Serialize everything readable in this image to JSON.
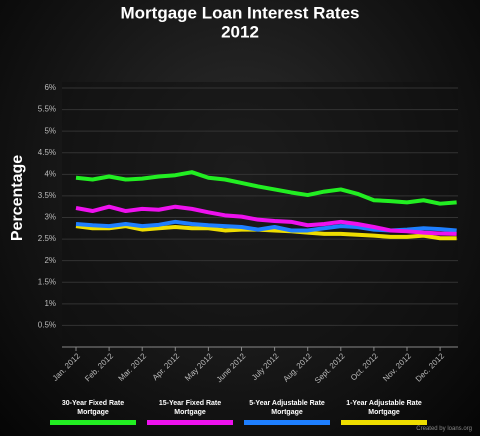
{
  "chart_data": {
    "type": "line",
    "title": "Mortgage Loan Interest Rates",
    "subtitle": "2012",
    "y_label": "Percentage",
    "source": "Created by loans.org",
    "categories": [
      "Jan. 2012",
      null,
      "Feb. 2012",
      null,
      "Mar. 2012",
      null,
      "Apr. 2012",
      null,
      "May 2012",
      null,
      "June 2012",
      null,
      "July 2012",
      null,
      "Aug. 2012",
      null,
      "Sept. 2012",
      null,
      "Oct. 2012",
      null,
      "Nov. 2012",
      null,
      "Dec. 2012",
      null
    ],
    "series": [
      {
        "name": "30-Year Fixed Rate Mortgage",
        "color": "#22ee22",
        "values": [
          3.92,
          3.88,
          3.95,
          3.88,
          3.9,
          3.95,
          3.98,
          4.05,
          3.92,
          3.88,
          3.8,
          3.72,
          3.65,
          3.58,
          3.52,
          3.6,
          3.65,
          3.55,
          3.4,
          3.38,
          3.35,
          3.4,
          3.32,
          3.35
        ]
      },
      {
        "name": "15-Year Fixed Rate Mortgage",
        "color": "#ee11ee",
        "values": [
          3.22,
          3.15,
          3.25,
          3.15,
          3.2,
          3.18,
          3.25,
          3.2,
          3.12,
          3.05,
          3.02,
          2.95,
          2.92,
          2.9,
          2.82,
          2.85,
          2.9,
          2.85,
          2.78,
          2.7,
          2.68,
          2.65,
          2.63,
          2.62
        ]
      },
      {
        "name": "5-Year Adjustable Rate Mortgage",
        "color": "#1e7fff",
        "values": [
          2.85,
          2.82,
          2.8,
          2.85,
          2.8,
          2.83,
          2.9,
          2.85,
          2.82,
          2.8,
          2.78,
          2.72,
          2.78,
          2.7,
          2.7,
          2.75,
          2.8,
          2.78,
          2.72,
          2.7,
          2.72,
          2.75,
          2.73,
          2.7
        ]
      },
      {
        "name": "1-Year Adjustable Rate Mortgage",
        "color": "#eedd00",
        "values": [
          2.8,
          2.75,
          2.75,
          2.8,
          2.72,
          2.75,
          2.78,
          2.75,
          2.75,
          2.7,
          2.72,
          2.72,
          2.7,
          2.68,
          2.65,
          2.62,
          2.62,
          2.6,
          2.58,
          2.55,
          2.55,
          2.58,
          2.52,
          2.52
        ]
      }
    ],
    "ylim": [
      0,
      6
    ],
    "yticks": [
      {
        "value": 0.5,
        "label": "0.5%"
      },
      {
        "value": 1,
        "label": "1%"
      },
      {
        "value": 1.5,
        "label": "1.5%"
      },
      {
        "value": 2,
        "label": "2%"
      },
      {
        "value": 2.5,
        "label": "2.5%"
      },
      {
        "value": 3,
        "label": "3%"
      },
      {
        "value": 3.5,
        "label": "3.5%"
      },
      {
        "value": 4,
        "label": "4%"
      },
      {
        "value": 4.5,
        "label": "4.5%"
      },
      {
        "value": 5,
        "label": "5%"
      },
      {
        "value": 5.5,
        "label": "5.5%"
      },
      {
        "value": 6,
        "label": "6%"
      }
    ],
    "grid": true
  }
}
